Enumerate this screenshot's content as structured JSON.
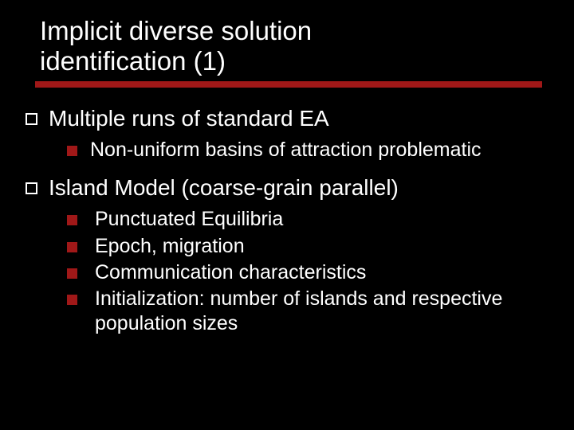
{
  "slide": {
    "background_color": "#000000",
    "text_color": "#ffffff",
    "accent_color": "#a01818",
    "title_line1": "Implicit diverse solution",
    "title_line2": "identification (1)",
    "title_fontsize": 33,
    "underline_height": 8,
    "bullets": [
      {
        "level": 1,
        "marker": "outline-square",
        "text": "Multiple runs of standard EA",
        "fontsize": 28,
        "children": [
          {
            "level": 2,
            "marker": "solid-square",
            "text": "Non-uniform basins of attraction problematic",
            "fontsize": 25
          }
        ]
      },
      {
        "level": 1,
        "marker": "outline-square",
        "text": "Island Model (coarse-grain parallel)",
        "fontsize": 28,
        "children": [
          {
            "level": 2,
            "marker": "solid-square",
            "text": "Punctuated Equilibria",
            "fontsize": 25
          },
          {
            "level": 2,
            "marker": "solid-square",
            "text": "Epoch, migration",
            "fontsize": 25
          },
          {
            "level": 2,
            "marker": "solid-square",
            "text": "Communication characteristics",
            "fontsize": 25
          },
          {
            "level": 2,
            "marker": "solid-square",
            "text": "Initialization: number of islands and respective population sizes",
            "fontsize": 25
          }
        ]
      }
    ]
  }
}
